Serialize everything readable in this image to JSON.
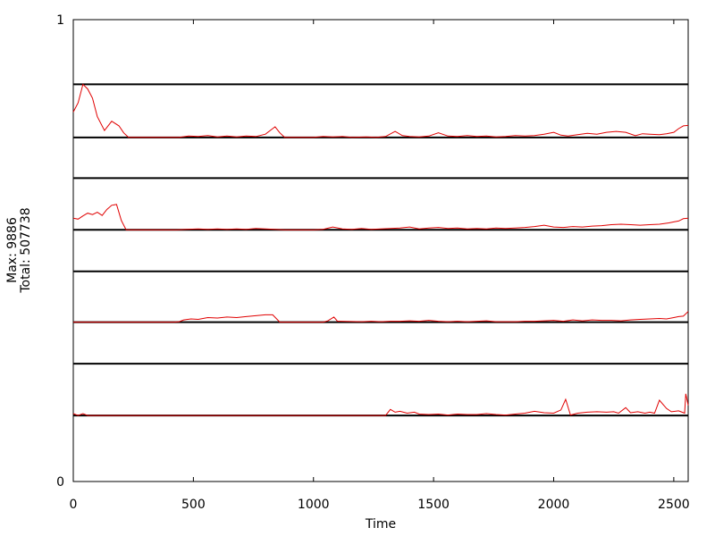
{
  "chart_data": {
    "type": "line",
    "xlabel": "Time",
    "ylabel_lines": [
      "Max: 9886",
      "Total: 507738"
    ],
    "xlim": [
      0,
      2560
    ],
    "ylim": [
      0,
      1
    ],
    "x_ticks": [
      {
        "value": 0,
        "label": "0"
      },
      {
        "value": 500,
        "label": "500"
      },
      {
        "value": 1000,
        "label": "1000"
      },
      {
        "value": 1500,
        "label": "1500"
      },
      {
        "value": 2000,
        "label": "2000"
      },
      {
        "value": 2500,
        "label": "2500"
      }
    ],
    "y_ticks": [
      {
        "value": 0,
        "label": "0"
      },
      {
        "value": 1,
        "label": "1"
      }
    ],
    "line_color": "#e00000",
    "separator_color": "#000000",
    "bands": [
      {
        "name": "band-1",
        "top": 0.86,
        "baseline": 0.745,
        "points": [
          [
            0,
            0.8
          ],
          [
            20,
            0.82
          ],
          [
            40,
            0.86
          ],
          [
            60,
            0.85
          ],
          [
            80,
            0.83
          ],
          [
            100,
            0.79
          ],
          [
            130,
            0.76
          ],
          [
            160,
            0.78
          ],
          [
            190,
            0.77
          ],
          [
            210,
            0.755
          ],
          [
            230,
            0.745
          ],
          [
            440,
            0.745
          ],
          [
            480,
            0.748
          ],
          [
            520,
            0.747
          ],
          [
            560,
            0.749
          ],
          [
            600,
            0.746
          ],
          [
            640,
            0.748
          ],
          [
            680,
            0.746
          ],
          [
            720,
            0.748
          ],
          [
            760,
            0.747
          ],
          [
            800,
            0.752
          ],
          [
            840,
            0.768
          ],
          [
            860,
            0.755
          ],
          [
            880,
            0.745
          ],
          [
            1000,
            0.745
          ],
          [
            1040,
            0.747
          ],
          [
            1080,
            0.746
          ],
          [
            1120,
            0.747
          ],
          [
            1160,
            0.745
          ],
          [
            1220,
            0.746
          ],
          [
            1260,
            0.745
          ],
          [
            1300,
            0.747
          ],
          [
            1340,
            0.758
          ],
          [
            1370,
            0.749
          ],
          [
            1400,
            0.747
          ],
          [
            1440,
            0.746
          ],
          [
            1480,
            0.748
          ],
          [
            1520,
            0.755
          ],
          [
            1560,
            0.748
          ],
          [
            1600,
            0.747
          ],
          [
            1640,
            0.749
          ],
          [
            1680,
            0.747
          ],
          [
            1720,
            0.748
          ],
          [
            1760,
            0.746
          ],
          [
            1800,
            0.747
          ],
          [
            1840,
            0.749
          ],
          [
            1880,
            0.748
          ],
          [
            1920,
            0.749
          ],
          [
            1960,
            0.752
          ],
          [
            2000,
            0.756
          ],
          [
            2030,
            0.75
          ],
          [
            2060,
            0.748
          ],
          [
            2100,
            0.751
          ],
          [
            2140,
            0.754
          ],
          [
            2180,
            0.752
          ],
          [
            2220,
            0.756
          ],
          [
            2260,
            0.758
          ],
          [
            2300,
            0.756
          ],
          [
            2340,
            0.749
          ],
          [
            2370,
            0.753
          ],
          [
            2400,
            0.752
          ],
          [
            2440,
            0.751
          ],
          [
            2470,
            0.753
          ],
          [
            2500,
            0.756
          ],
          [
            2520,
            0.764
          ],
          [
            2540,
            0.77
          ],
          [
            2560,
            0.771
          ]
        ]
      },
      {
        "name": "band-2",
        "top": 0.657,
        "baseline": 0.545,
        "points": [
          [
            0,
            0.57
          ],
          [
            20,
            0.568
          ],
          [
            40,
            0.575
          ],
          [
            60,
            0.581
          ],
          [
            80,
            0.578
          ],
          [
            100,
            0.583
          ],
          [
            120,
            0.576
          ],
          [
            140,
            0.589
          ],
          [
            160,
            0.598
          ],
          [
            180,
            0.6
          ],
          [
            200,
            0.565
          ],
          [
            220,
            0.545
          ],
          [
            430,
            0.545
          ],
          [
            470,
            0.546
          ],
          [
            520,
            0.547
          ],
          [
            560,
            0.546
          ],
          [
            600,
            0.547
          ],
          [
            640,
            0.546
          ],
          [
            680,
            0.547
          ],
          [
            720,
            0.546
          ],
          [
            760,
            0.548
          ],
          [
            800,
            0.547
          ],
          [
            840,
            0.546
          ],
          [
            880,
            0.545
          ],
          [
            1000,
            0.545
          ],
          [
            1040,
            0.546
          ],
          [
            1080,
            0.551
          ],
          [
            1120,
            0.547
          ],
          [
            1160,
            0.546
          ],
          [
            1200,
            0.548
          ],
          [
            1240,
            0.546
          ],
          [
            1280,
            0.547
          ],
          [
            1320,
            0.548
          ],
          [
            1360,
            0.549
          ],
          [
            1400,
            0.551
          ],
          [
            1440,
            0.547
          ],
          [
            1480,
            0.549
          ],
          [
            1520,
            0.55
          ],
          [
            1560,
            0.548
          ],
          [
            1600,
            0.549
          ],
          [
            1640,
            0.547
          ],
          [
            1680,
            0.548
          ],
          [
            1720,
            0.547
          ],
          [
            1760,
            0.549
          ],
          [
            1800,
            0.548
          ],
          [
            1840,
            0.549
          ],
          [
            1880,
            0.55
          ],
          [
            1920,
            0.552
          ],
          [
            1960,
            0.555
          ],
          [
            2000,
            0.551
          ],
          [
            2040,
            0.55
          ],
          [
            2080,
            0.552
          ],
          [
            2120,
            0.551
          ],
          [
            2160,
            0.553
          ],
          [
            2200,
            0.554
          ],
          [
            2240,
            0.556
          ],
          [
            2280,
            0.557
          ],
          [
            2320,
            0.556
          ],
          [
            2360,
            0.555
          ],
          [
            2400,
            0.556
          ],
          [
            2440,
            0.557
          ],
          [
            2480,
            0.56
          ],
          [
            2500,
            0.562
          ],
          [
            2520,
            0.564
          ],
          [
            2540,
            0.569
          ],
          [
            2560,
            0.57
          ]
        ]
      },
      {
        "name": "band-3",
        "top": 0.455,
        "baseline": 0.345,
        "points": [
          [
            0,
            0.345
          ],
          [
            420,
            0.345
          ],
          [
            440,
            0.346
          ],
          [
            460,
            0.35
          ],
          [
            490,
            0.352
          ],
          [
            520,
            0.351
          ],
          [
            560,
            0.355
          ],
          [
            600,
            0.354
          ],
          [
            640,
            0.356
          ],
          [
            680,
            0.355
          ],
          [
            720,
            0.357
          ],
          [
            760,
            0.359
          ],
          [
            800,
            0.361
          ],
          [
            830,
            0.361
          ],
          [
            860,
            0.345
          ],
          [
            1040,
            0.345
          ],
          [
            1060,
            0.348
          ],
          [
            1085,
            0.356
          ],
          [
            1100,
            0.347
          ],
          [
            1200,
            0.346
          ],
          [
            1240,
            0.347
          ],
          [
            1280,
            0.346
          ],
          [
            1320,
            0.347
          ],
          [
            1360,
            0.347
          ],
          [
            1400,
            0.348
          ],
          [
            1440,
            0.347
          ],
          [
            1480,
            0.349
          ],
          [
            1520,
            0.347
          ],
          [
            1560,
            0.346
          ],
          [
            1600,
            0.347
          ],
          [
            1640,
            0.346
          ],
          [
            1680,
            0.347
          ],
          [
            1720,
            0.348
          ],
          [
            1760,
            0.346
          ],
          [
            1800,
            0.346
          ],
          [
            1840,
            0.346
          ],
          [
            1880,
            0.347
          ],
          [
            1920,
            0.347
          ],
          [
            1960,
            0.348
          ],
          [
            2000,
            0.349
          ],
          [
            2040,
            0.347
          ],
          [
            2080,
            0.35
          ],
          [
            2120,
            0.348
          ],
          [
            2160,
            0.35
          ],
          [
            2200,
            0.349
          ],
          [
            2240,
            0.349
          ],
          [
            2280,
            0.348
          ],
          [
            2320,
            0.35
          ],
          [
            2360,
            0.351
          ],
          [
            2400,
            0.352
          ],
          [
            2440,
            0.353
          ],
          [
            2470,
            0.352
          ],
          [
            2500,
            0.355
          ],
          [
            2520,
            0.357
          ],
          [
            2540,
            0.358
          ],
          [
            2560,
            0.368
          ]
        ]
      },
      {
        "name": "band-4",
        "top": 0.255,
        "baseline": 0.143,
        "points": [
          [
            0,
            0.147
          ],
          [
            20,
            0.143
          ],
          [
            40,
            0.147
          ],
          [
            60,
            0.143
          ],
          [
            1300,
            0.143
          ],
          [
            1320,
            0.156
          ],
          [
            1340,
            0.15
          ],
          [
            1360,
            0.152
          ],
          [
            1390,
            0.148
          ],
          [
            1420,
            0.15
          ],
          [
            1440,
            0.146
          ],
          [
            1480,
            0.145
          ],
          [
            1520,
            0.146
          ],
          [
            1560,
            0.144
          ],
          [
            1600,
            0.146
          ],
          [
            1640,
            0.145
          ],
          [
            1680,
            0.145
          ],
          [
            1720,
            0.147
          ],
          [
            1760,
            0.145
          ],
          [
            1800,
            0.144
          ],
          [
            1840,
            0.146
          ],
          [
            1880,
            0.148
          ],
          [
            1920,
            0.152
          ],
          [
            1960,
            0.149
          ],
          [
            2000,
            0.148
          ],
          [
            2030,
            0.155
          ],
          [
            2050,
            0.178
          ],
          [
            2070,
            0.144
          ],
          [
            2100,
            0.148
          ],
          [
            2140,
            0.15
          ],
          [
            2180,
            0.151
          ],
          [
            2220,
            0.15
          ],
          [
            2250,
            0.151
          ],
          [
            2270,
            0.148
          ],
          [
            2300,
            0.16
          ],
          [
            2320,
            0.149
          ],
          [
            2350,
            0.151
          ],
          [
            2380,
            0.148
          ],
          [
            2400,
            0.15
          ],
          [
            2420,
            0.148
          ],
          [
            2440,
            0.176
          ],
          [
            2470,
            0.158
          ],
          [
            2490,
            0.151
          ],
          [
            2520,
            0.153
          ],
          [
            2545,
            0.148
          ],
          [
            2550,
            0.19
          ],
          [
            2560,
            0.165
          ]
        ]
      }
    ]
  }
}
